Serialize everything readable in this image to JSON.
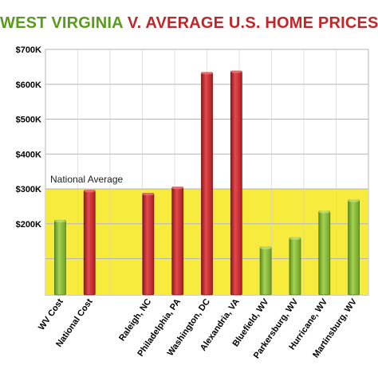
{
  "chart_data": {
    "type": "bar",
    "title_part1": "WEST VIRGINIA",
    "title_part2": "V. AVERAGE U.S. HOME PRICES",
    "xlabel": "",
    "ylabel": "",
    "ylim": [
      0,
      700000
    ],
    "yticks": [
      {
        "value": 200000,
        "label": "$200K"
      },
      {
        "value": 300000,
        "label": "$300K"
      },
      {
        "value": 400000,
        "label": "$400K"
      },
      {
        "value": 500000,
        "label": "$500K"
      },
      {
        "value": 600000,
        "label": "$600K"
      },
      {
        "value": 700000,
        "label": "$700K"
      }
    ],
    "grid": true,
    "categories": [
      "WV Cost",
      "National Cost",
      "",
      "Raleigh, NC",
      "Philadelphia, PA",
      "Washington, DC",
      "Alexandria, VA",
      "Bluefield, WV",
      "Parkersburg, WV",
      "Hurricane, WV",
      "Martinsburg, WV"
    ],
    "values": [
      210000,
      296000,
      null,
      287000,
      305000,
      634000,
      638000,
      133000,
      160000,
      236000,
      268000
    ],
    "bar_colors": [
      "#7fb52f",
      "#c9262b",
      null,
      "#c9262b",
      "#c9262b",
      "#c9262b",
      "#c9262b",
      "#7fb52f",
      "#7fb52f",
      "#7fb52f",
      "#7fb52f"
    ],
    "national_average": {
      "label": "National Average",
      "value": 300000,
      "band_color": "#f7ec3e"
    }
  }
}
